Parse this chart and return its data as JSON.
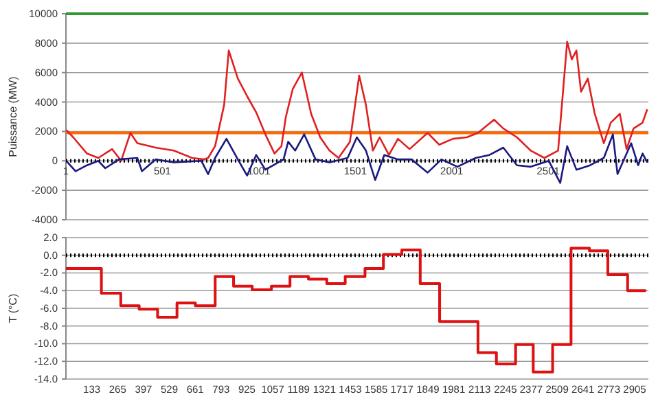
{
  "chart_data": [
    {
      "type": "line",
      "ylabel": "Puissance (MW)",
      "xlim": [
        1,
        3020
      ],
      "xticks": [
        1,
        501,
        1001,
        1501,
        2001,
        2501
      ],
      "ylim": [
        -4000,
        10000
      ],
      "yticks": [
        -4000,
        -2000,
        0,
        2000,
        4000,
        6000,
        8000,
        10000
      ],
      "grid": "y",
      "marker": "none",
      "series": [
        {
          "color": "#e02020",
          "x": [
            3,
            39,
            110,
            169,
            240,
            264,
            287,
            335,
            371,
            466,
            560,
            655,
            715,
            738,
            774,
            821,
            845,
            892,
            940,
            987,
            1035,
            1082,
            1118,
            1141,
            1177,
            1224,
            1272,
            1319,
            1367,
            1414,
            1473,
            1521,
            1556,
            1592,
            1627,
            1675,
            1722,
            1782,
            1876,
            1936,
            2007,
            2078,
            2137,
            2220,
            2268,
            2339,
            2410,
            2481,
            2552,
            2599,
            2623,
            2647,
            2671,
            2706,
            2742,
            2789,
            2825,
            2872,
            2907,
            2943,
            2990,
            3014
          ],
          "values": [
            2100,
            1600,
            500,
            200,
            800,
            400,
            0,
            1900,
            1200,
            900,
            700,
            200,
            100,
            200,
            1000,
            3800,
            7500,
            5600,
            4400,
            3300,
            1800,
            500,
            1000,
            3000,
            4900,
            6000,
            3200,
            1600,
            700,
            200,
            1300,
            5800,
            3800,
            700,
            1600,
            400,
            1500,
            800,
            1900,
            1100,
            1500,
            1600,
            1900,
            2800,
            2200,
            1600,
            700,
            200,
            700,
            8100,
            6900,
            7500,
            4700,
            5600,
            3200,
            1200,
            2600,
            3200,
            800,
            2200,
            2600,
            3500
          ]
        },
        {
          "color": "#1a1a80",
          "x": [
            3,
            51,
            110,
            169,
            205,
            276,
            371,
            395,
            466,
            560,
            703,
            738,
            774,
            833,
            892,
            940,
            987,
            1035,
            1129,
            1153,
            1189,
            1236,
            1295,
            1367,
            1461,
            1509,
            1556,
            1604,
            1651,
            1722,
            1793,
            1876,
            1947,
            2030,
            2125,
            2196,
            2268,
            2339,
            2410,
            2504,
            2563,
            2599,
            2647,
            2718,
            2789,
            2836,
            2860,
            2931,
            2967,
            2990,
            3014
          ],
          "values": [
            0,
            -700,
            -300,
            0,
            -500,
            100,
            200,
            -700,
            100,
            -100,
            0,
            -900,
            200,
            1500,
            100,
            -1000,
            400,
            -600,
            100,
            1300,
            700,
            1800,
            100,
            -100,
            200,
            1600,
            700,
            -1300,
            400,
            100,
            100,
            -800,
            100,
            -400,
            200,
            400,
            900,
            -300,
            -400,
            0,
            -1500,
            1000,
            -600,
            -300,
            200,
            1800,
            -900,
            1200,
            -300,
            500,
            -100
          ]
        }
      ],
      "ref_lines": [
        {
          "axis": "y",
          "value": 10000,
          "color": "#339933"
        },
        {
          "axis": "y",
          "value": 1900,
          "color": "#ff6a00"
        },
        {
          "axis": "y",
          "value": 0,
          "color": "#000000",
          "line_style": "dotted"
        }
      ]
    },
    {
      "type": "step",
      "ylabel": "T (°C)",
      "xlim": [
        1,
        2975
      ],
      "xticks": [
        133,
        265,
        397,
        529,
        661,
        793,
        925,
        1057,
        1189,
        1321,
        1453,
        1585,
        1717,
        1849,
        1981,
        2113,
        2245,
        2377,
        2509,
        2641,
        2773,
        2905
      ],
      "ylim": [
        -14,
        2
      ],
      "yticks": [
        {
          "value": -14,
          "label": "-14.0"
        },
        {
          "value": -12,
          "label": "-12.0"
        },
        {
          "value": -10,
          "label": "-10.0"
        },
        {
          "value": -8,
          "label": "-8.0"
        },
        {
          "value": -6,
          "label": "-6.0"
        },
        {
          "value": -4,
          "label": "-4.0"
        },
        {
          "value": -2,
          "label": "-2.0"
        },
        {
          "value": 0,
          "label": "0.0"
        },
        {
          "value": 2,
          "label": "2.0"
        }
      ],
      "grid": "y",
      "marker": "none",
      "ref_lines": [
        {
          "axis": "y",
          "value": 0,
          "color": "#000000",
          "line_style": "dotted"
        }
      ],
      "series": [
        {
          "color": "#dd1111",
          "x": [
            1,
            182,
            281,
            375,
            469,
            568,
            662,
            763,
            857,
            952,
            1050,
            1145,
            1239,
            1333,
            1427,
            1528,
            1622,
            1716,
            1810,
            1909,
            2105,
            2199,
            2297,
            2387,
            2486,
            2580,
            2674,
            2768,
            2869,
            2963
          ],
          "values": [
            -1.5,
            -4.3,
            -5.7,
            -6.1,
            -7,
            -5.4,
            -5.7,
            -2.4,
            -3.5,
            -3.9,
            -3.5,
            -2.4,
            -2.7,
            -3.2,
            -2.4,
            -1.5,
            0.1,
            0.6,
            -3.2,
            -7.5,
            -11,
            -12.3,
            -10.1,
            -13.2,
            -10.1,
            0.8,
            0.5,
            -2.2,
            -4,
            -4
          ]
        }
      ]
    }
  ]
}
